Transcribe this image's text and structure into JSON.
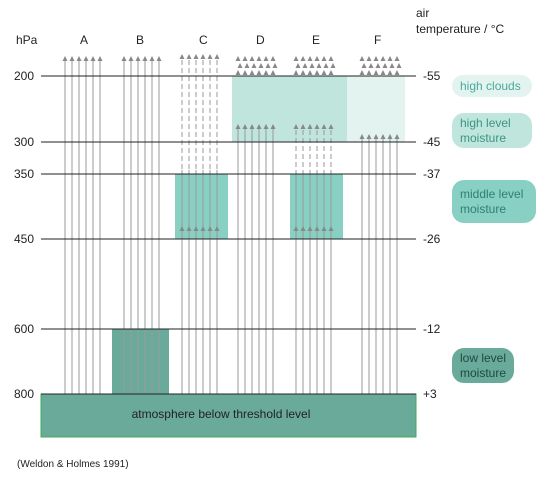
{
  "axis": {
    "left_unit": "hPa",
    "right_unit_line1": "air",
    "right_unit_line2": "temperature / °C",
    "pressure_levels": [
      "200",
      "300",
      "350",
      "450",
      "600",
      "800"
    ],
    "temperatures": [
      "-55",
      "-45",
      "-37",
      "-26",
      "-12",
      "+3"
    ]
  },
  "columns": [
    "A",
    "B",
    "C",
    "D",
    "E",
    "F"
  ],
  "base_layer_label": "atmosphere below threshold level",
  "legend": {
    "high_clouds": "high clouds",
    "high_level_moisture_1": "high level",
    "high_level_moisture_2": "moisture",
    "middle_level_moisture_1": "middle level",
    "middle_level_moisture_2": "moisture",
    "low_level_moisture_1": "low level",
    "low_level_moisture_2": "moisture"
  },
  "colors": {
    "high_clouds": "#e3f4f0",
    "high_level_moisture": "#bfe5dd",
    "middle_level_moisture": "#87d0c3",
    "low_level_moisture": "#6aaa9b",
    "base_layer": "#6aaa9b"
  },
  "citation": "(Weldon & Holmes 1991)"
}
